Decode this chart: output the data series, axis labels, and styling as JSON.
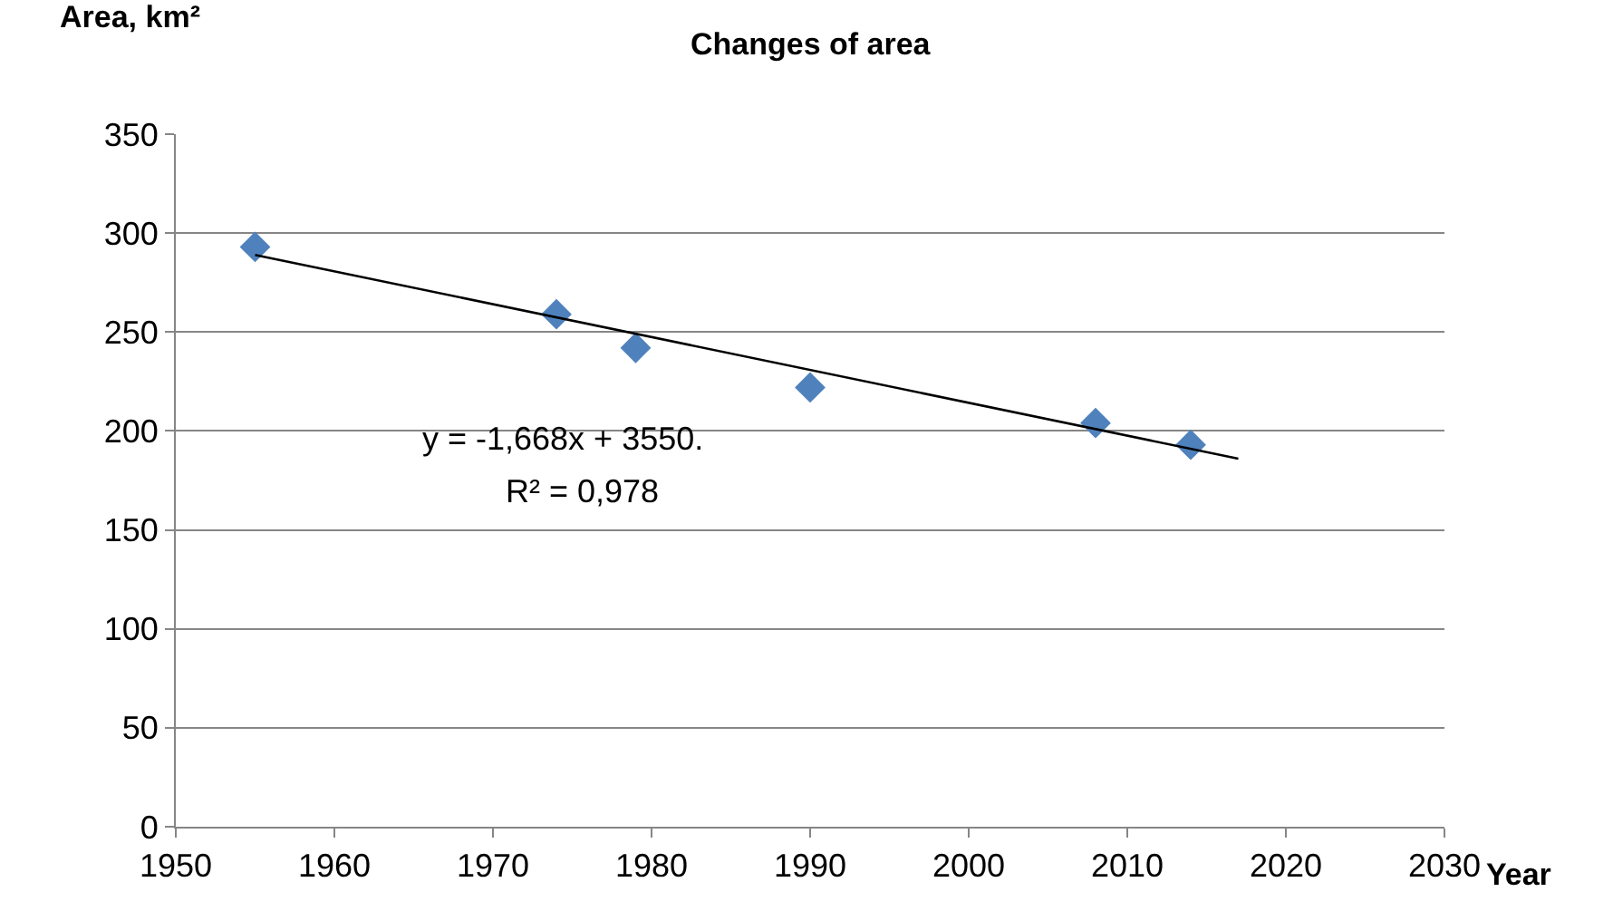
{
  "chart_data": {
    "type": "scatter",
    "title": "Changes of area",
    "xlabel": "Year",
    "ylabel": "Area, km²",
    "x": [
      1955,
      1974,
      1979,
      1990,
      2008,
      2014
    ],
    "series": [
      {
        "color": "#4f81bd",
        "marker": "diamond",
        "values": [
          293,
          259,
          242,
          222,
          204,
          193
        ]
      },
      {
        "type": "line",
        "color": "#000000",
        "marker": "none",
        "x": [
          1955,
          2017
        ],
        "values": [
          289,
          186
        ]
      }
    ],
    "xlim": [
      1950,
      2030
    ],
    "xticks": [
      1950,
      1960,
      1970,
      1980,
      1990,
      2000,
      2010,
      2020,
      2030
    ],
    "ylim": [
      0,
      350
    ],
    "yticks": [
      0,
      50,
      100,
      150,
      200,
      250,
      300,
      350
    ],
    "grid": "y",
    "annotations": [
      "y = -1,668x + 3550.",
      "R² = 0,978"
    ]
  }
}
